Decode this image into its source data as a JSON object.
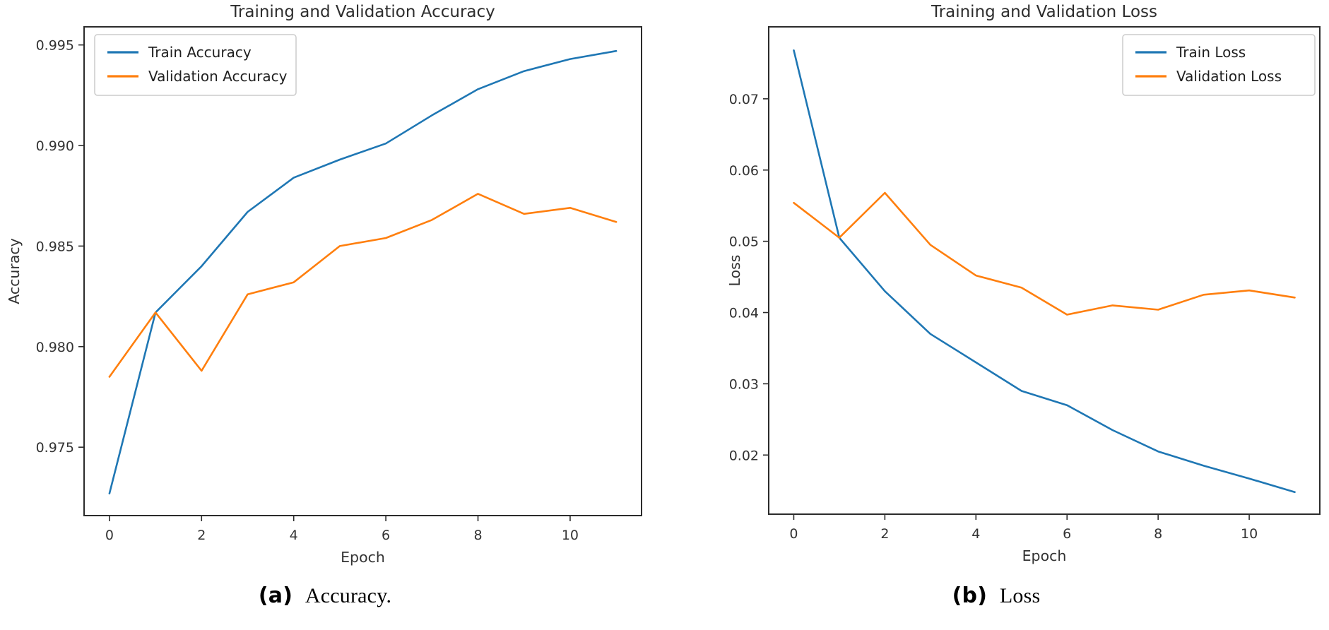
{
  "figure": {
    "background": "#ffffff",
    "colors": {
      "train": "#1f77b4",
      "validation": "#ff7f0e",
      "text": "#333333",
      "spine": "#2b2b2b",
      "legend_border": "#cccccc",
      "legend_bg": "#ffffff"
    }
  },
  "chart_data": [
    {
      "type": "line",
      "title": "Training and Validation Accuracy",
      "xlabel": "Epoch",
      "ylabel": "Accuracy",
      "x": [
        0,
        1,
        2,
        3,
        4,
        5,
        6,
        7,
        8,
        9,
        10,
        11
      ],
      "series": [
        {
          "name": "Train Accuracy",
          "color_key": "train",
          "values": [
            0.9727,
            0.9817,
            0.984,
            0.9867,
            0.9884,
            0.9893,
            0.9901,
            0.9915,
            0.9928,
            0.9937,
            0.9943,
            0.9947
          ]
        },
        {
          "name": "Validation Accuracy",
          "color_key": "validation",
          "values": [
            0.9785,
            0.9817,
            0.9788,
            0.9826,
            0.9832,
            0.985,
            0.9854,
            0.9863,
            0.9876,
            0.9866,
            0.9869,
            0.9862
          ]
        }
      ],
      "xlim": [
        -0.55,
        11.55
      ],
      "ylim": [
        0.9716,
        0.9959
      ],
      "xticks": [
        0,
        2,
        4,
        6,
        8,
        10
      ],
      "xtick_labels": [
        "0",
        "2",
        "4",
        "6",
        "8",
        "10"
      ],
      "yticks": [
        0.975,
        0.98,
        0.985,
        0.99,
        0.995
      ],
      "ytick_labels": [
        "0.975",
        "0.980",
        "0.985",
        "0.990",
        "0.995"
      ],
      "grid": false,
      "legend_position": "upper-left",
      "caption_prefix": "(a)",
      "caption_text": "Accuracy."
    },
    {
      "type": "line",
      "title": "Training and Validation Loss",
      "xlabel": "Epoch",
      "ylabel": "Loss",
      "x": [
        0,
        1,
        2,
        3,
        4,
        5,
        6,
        7,
        8,
        9,
        10,
        11
      ],
      "series": [
        {
          "name": "Train Loss",
          "color_key": "train",
          "values": [
            0.0768,
            0.0505,
            0.043,
            0.037,
            0.033,
            0.029,
            0.027,
            0.0235,
            0.0205,
            0.0185,
            0.0167,
            0.0148
          ]
        },
        {
          "name": "Validation Loss",
          "color_key": "validation",
          "values": [
            0.0554,
            0.0505,
            0.0568,
            0.0495,
            0.0452,
            0.0435,
            0.0397,
            0.041,
            0.0404,
            0.0425,
            0.0431,
            0.0421
          ]
        }
      ],
      "xlim": [
        -0.55,
        11.55
      ],
      "ylim": [
        0.0117,
        0.0801
      ],
      "xticks": [
        0,
        2,
        4,
        6,
        8,
        10
      ],
      "xtick_labels": [
        "0",
        "2",
        "4",
        "6",
        "8",
        "10"
      ],
      "yticks": [
        0.02,
        0.03,
        0.04,
        0.05,
        0.06,
        0.07
      ],
      "ytick_labels": [
        "0.02",
        "0.03",
        "0.04",
        "0.05",
        "0.06",
        "0.07"
      ],
      "grid": false,
      "legend_position": "upper-right",
      "caption_prefix": "(b)",
      "caption_text": "Loss"
    }
  ]
}
